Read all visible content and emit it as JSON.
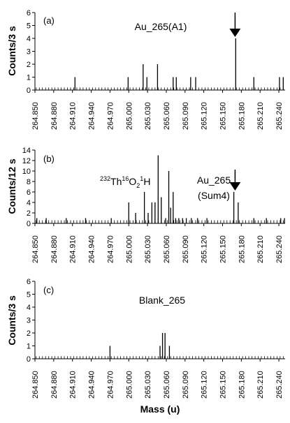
{
  "chart_data": [
    {
      "type": "bar",
      "panel_label": "(a)",
      "annotation": "Au_265(A1)",
      "ylabel": "Counts/3 s",
      "xlim": [
        264.85,
        265.25
      ],
      "ylim": [
        0,
        6
      ],
      "y_ticks": [
        "0",
        "1",
        "2",
        "3",
        "4",
        "5",
        "6"
      ],
      "x_ticks": [
        "264.850",
        "264.880",
        "264.910",
        "264.940",
        "264.970",
        "265.000",
        "265.030",
        "265.060",
        "265.090",
        "265.120",
        "265.150",
        "265.180",
        "265.210",
        "265.240"
      ],
      "arrow_at": 265.17,
      "baseline_value": 0.2,
      "x": [
        264.914,
        264.999,
        265.023,
        265.029,
        265.046,
        265.071,
        265.076,
        265.099,
        265.107,
        265.171,
        265.2,
        265.241,
        265.247
      ],
      "values": [
        1,
        1,
        2,
        1,
        2,
        1,
        1,
        1,
        1,
        4,
        1,
        1,
        1
      ]
    },
    {
      "type": "bar",
      "panel_label": "(b)",
      "annotation": "Au_265",
      "annotation2": "(Sum4)",
      "species_label": {
        "mass1": "232",
        "el1": "Th",
        "mass2": "16",
        "el2": "O",
        "sub2": "2",
        "mass3": "1",
        "el3": "H"
      },
      "ylabel": "Counts/12 s",
      "xlim": [
        264.85,
        265.25
      ],
      "ylim": [
        0,
        14
      ],
      "y_ticks": [
        "0",
        "2",
        "4",
        "6",
        "8",
        "10",
        "12",
        "14"
      ],
      "x_ticks": [
        "264.850",
        "264.880",
        "264.910",
        "264.940",
        "264.970",
        "265.000",
        "265.030",
        "265.060",
        "265.090",
        "265.120",
        "265.150",
        "265.180",
        "265.210",
        "265.240"
      ],
      "arrow_at": 265.17,
      "baseline_value": 0.6,
      "x": [
        264.853,
        264.868,
        264.9,
        264.931,
        264.972,
        265.0,
        265.011,
        265.025,
        265.031,
        265.037,
        265.042,
        265.047,
        265.052,
        265.059,
        265.064,
        265.067,
        265.071,
        265.075,
        265.08,
        265.086,
        265.092,
        265.1,
        265.11,
        265.125,
        265.168,
        265.175,
        265.2,
        265.22,
        265.243,
        265.249
      ],
      "values": [
        1,
        1,
        1,
        1,
        1,
        4,
        2,
        6,
        2,
        4,
        4,
        13,
        5,
        1,
        10,
        3,
        6,
        1,
        1,
        1,
        1,
        1,
        1,
        1,
        6,
        4,
        1,
        1,
        1,
        1
      ]
    },
    {
      "type": "bar",
      "panel_label": "(c)",
      "annotation": "Blank_265",
      "ylabel": "Counts/3 s",
      "xlabel": "Mass (u)",
      "xlim": [
        264.85,
        265.25
      ],
      "ylim": [
        0,
        6
      ],
      "y_ticks": [
        "0",
        "1",
        "2",
        "3",
        "4",
        "5",
        "6"
      ],
      "x_ticks": [
        "264.850",
        "264.880",
        "264.910",
        "264.940",
        "264.970",
        "265.000",
        "265.030",
        "265.060",
        "265.090",
        "265.120",
        "265.150",
        "265.180",
        "265.210",
        "265.240"
      ],
      "baseline_value": 0.2,
      "x": [
        264.97,
        265.05,
        265.054,
        265.058,
        265.065
      ],
      "values": [
        1,
        1,
        2,
        2,
        1
      ]
    }
  ]
}
